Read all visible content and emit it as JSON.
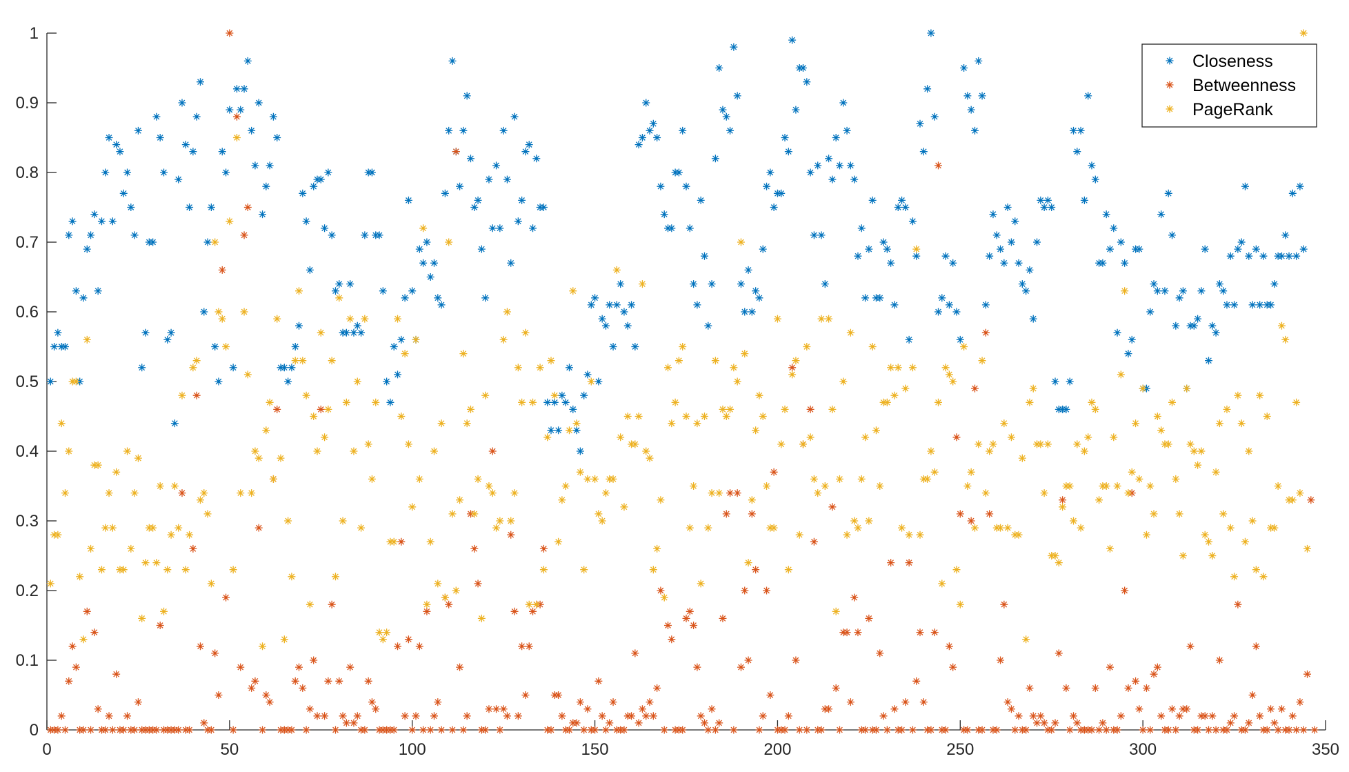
{
  "chart_data": {
    "type": "scatter",
    "marker": "asterisk",
    "xlim": [
      0,
      350
    ],
    "ylim": [
      0,
      1
    ],
    "xticks": [
      0,
      50,
      100,
      150,
      200,
      250,
      300,
      350
    ],
    "yticks": [
      0,
      0.1,
      0.2,
      0.3,
      0.4,
      0.5,
      0.6,
      0.7,
      0.8,
      0.9,
      1
    ],
    "xtick_labels": [
      "0",
      "50",
      "100",
      "150",
      "200",
      "250",
      "300",
      "350"
    ],
    "ytick_labels": [
      "0",
      "0.1",
      "0.2",
      "0.3",
      "0.4",
      "0.5",
      "0.6",
      "0.7",
      "0.8",
      "0.9",
      "1"
    ],
    "grid": false,
    "legend_position": "top-right",
    "series": [
      {
        "name": "Closeness",
        "color": "#0072BD",
        "y": [
          0.5,
          0.55,
          0.57,
          0.55,
          0.55,
          0.71,
          0.73,
          0.63,
          0.5,
          0.62,
          0.69,
          0.71,
          0.74,
          0.63,
          0.73,
          0.8,
          0.85,
          0.73,
          0.84,
          0.83,
          0.77,
          0.8,
          0.75,
          0.71,
          0.86,
          0.52,
          0.57,
          0.7,
          0.7,
          0.88,
          0.85,
          0.8,
          0.56,
          0.57,
          0.44,
          0.79,
          0.9,
          0.84,
          0.75,
          0.83,
          0.88,
          0.93,
          0.6,
          0.7,
          0.75,
          0.55,
          0.5,
          0.83,
          0.8,
          0.89,
          0.52,
          0.92,
          0.89,
          0.92,
          0.96,
          0.86,
          0.81,
          0.9,
          0.74,
          0.78,
          0.81,
          0.88,
          0.85,
          0.52,
          0.52,
          0.5,
          0.52,
          0.55,
          0.58,
          0.77,
          0.73,
          0.66,
          0.78,
          0.79,
          0.79,
          0.72,
          0.8,
          0.71,
          0.63,
          0.64,
          0.57,
          0.57,
          0.64,
          0.57,
          0.58,
          0.57,
          0.71,
          0.8,
          0.8,
          0.71,
          0.71,
          0.63,
          0.5,
          0.47,
          0.55,
          0.51,
          0.56,
          0.62,
          0.76,
          0.63,
          0.56,
          0.69,
          0.67,
          0.7,
          0.65,
          0.67,
          0.62,
          0.61,
          0.77,
          0.86,
          0.96,
          0.83,
          0.78,
          0.86,
          0.91,
          0.82,
          0.75,
          0.76,
          0.69,
          0.62,
          0.79,
          0.72,
          0.81,
          0.72,
          0.86,
          0.79,
          0.67,
          0.88,
          0.73,
          0.76,
          0.83,
          0.84,
          0.72,
          0.82,
          0.75,
          0.75,
          0.47,
          0.43,
          0.47,
          0.43,
          0.48,
          0.47,
          0.52,
          0.46,
          0.43,
          0.4,
          0.48,
          0.51,
          0.61,
          0.62,
          0.5,
          0.59,
          0.58,
          0.61,
          0.55,
          0.61,
          0.64,
          0.6,
          0.58,
          0.61,
          0.55,
          0.84,
          0.85,
          0.9,
          0.86,
          0.87,
          0.85,
          0.78,
          0.74,
          0.72,
          0.72,
          0.8,
          0.8,
          0.86,
          0.78,
          0.72,
          0.64,
          0.61,
          0.76,
          0.68,
          0.58,
          0.64,
          0.82,
          0.95,
          0.89,
          0.88,
          0.86,
          0.98,
          0.91,
          0.64,
          0.6,
          0.66,
          0.6,
          0.63,
          0.62,
          0.69,
          0.78,
          0.8,
          0.75,
          0.77,
          0.77,
          0.85,
          0.83,
          0.99,
          0.89,
          0.95,
          0.95,
          0.93,
          0.8,
          0.71,
          0.81,
          0.71,
          0.64,
          0.82,
          0.79,
          0.85,
          0.81,
          0.9,
          0.86,
          0.81,
          0.79,
          0.68,
          0.72,
          0.62,
          0.69,
          0.76,
          0.62,
          0.62,
          0.7,
          0.69,
          0.67,
          0.61,
          0.75,
          0.76,
          0.75,
          0.56,
          0.73,
          0.68,
          0.87,
          0.83,
          0.92,
          1.0,
          0.88,
          0.6,
          0.62,
          0.68,
          0.61,
          0.67,
          0.6,
          0.56,
          0.95,
          0.91,
          0.89,
          0.86,
          0.96,
          0.91,
          0.61,
          0.68,
          0.74,
          0.71,
          0.69,
          0.67,
          0.75,
          0.7,
          0.73,
          0.67,
          0.64,
          0.63,
          0.66,
          0.59,
          0.7,
          0.76,
          0.75,
          0.76,
          0.75,
          0.5,
          0.46,
          0.46,
          0.46,
          0.5,
          0.86,
          0.83,
          0.86,
          0.76,
          0.91,
          0.81,
          0.79,
          0.67,
          0.67,
          0.74,
          0.69,
          0.72,
          0.57,
          0.7,
          0.67,
          0.54,
          0.56,
          0.69,
          0.69,
          0.49,
          0.49,
          0.6,
          0.64,
          0.63,
          0.74,
          0.63,
          0.77,
          0.71,
          0.58,
          0.62,
          0.63,
          0.49,
          0.58,
          0.58,
          0.59,
          0.63,
          0.69,
          0.53,
          0.58,
          0.57,
          0.64,
          0.63,
          0.61,
          0.68,
          0.61,
          0.69,
          0.7,
          0.78,
          0.68,
          0.61,
          0.69,
          0.61,
          0.68,
          0.61,
          0.61,
          0.64,
          0.68,
          0.68,
          0.71,
          0.68,
          0.77,
          0.68,
          0.78,
          0.69
        ]
      },
      {
        "name": "Betweenness",
        "color": "#D95319",
        "y": [
          0.0,
          0.0,
          0.0,
          0.02,
          0.0,
          0.07,
          0.12,
          0.09,
          0.0,
          0.0,
          0.17,
          0.0,
          0.14,
          0.03,
          0.0,
          0.0,
          0.02,
          0.0,
          0.08,
          0.0,
          0.0,
          0.02,
          0.0,
          0.0,
          0.04,
          0.0,
          0.0,
          0.0,
          0.0,
          0.0,
          0.15,
          0.0,
          0.0,
          0.0,
          0.0,
          0.0,
          0.34,
          0.0,
          0.0,
          0.26,
          0.48,
          0.12,
          0.01,
          0.0,
          0.0,
          0.11,
          0.05,
          0.66,
          0.19,
          1.0,
          0.0,
          0.88,
          0.09,
          0.71,
          0.75,
          0.06,
          0.07,
          0.29,
          0.0,
          0.05,
          0.04,
          0.36,
          0.46,
          0.0,
          0.0,
          0.0,
          0.0,
          0.07,
          0.09,
          0.06,
          0.0,
          0.03,
          0.1,
          0.02,
          0.46,
          0.02,
          0.07,
          0.18,
          0.0,
          0.07,
          0.02,
          0.01,
          0.09,
          0.01,
          0.02,
          0.0,
          0.0,
          0.07,
          0.04,
          0.03,
          0.0,
          0.0,
          0.0,
          0.0,
          0.0,
          0.12,
          0.27,
          0.02,
          0.13,
          0.0,
          0.02,
          0.12,
          0.0,
          0.17,
          0.0,
          0.02,
          0.04,
          0.0,
          0.19,
          0.18,
          0.0,
          0.83,
          0.09,
          0.0,
          0.02,
          0.31,
          0.26,
          0.21,
          0.0,
          0.0,
          0.03,
          0.4,
          0.03,
          0.0,
          0.03,
          0.02,
          0.28,
          0.17,
          0.02,
          0.12,
          0.05,
          0.12,
          0.17,
          0.18,
          0.18,
          0.26,
          0.0,
          0.0,
          0.05,
          0.05,
          0.02,
          0.0,
          0.0,
          0.01,
          0.01,
          0.04,
          0.0,
          0.03,
          0.0,
          0.0,
          0.07,
          0.02,
          0.0,
          0.01,
          0.04,
          0.0,
          0.0,
          0.0,
          0.02,
          0.02,
          0.11,
          0.01,
          0.03,
          0.02,
          0.04,
          0.02,
          0.06,
          0.2,
          0.0,
          0.15,
          0.13,
          0.0,
          0.0,
          0.0,
          0.16,
          0.17,
          0.15,
          0.09,
          0.02,
          0.01,
          0.0,
          0.03,
          0.0,
          0.01,
          0.16,
          0.31,
          0.34,
          0.0,
          0.34,
          0.09,
          0.2,
          0.1,
          0.31,
          0.23,
          0.0,
          0.02,
          0.2,
          0.05,
          0.37,
          0.0,
          0.0,
          0.0,
          0.02,
          0.52,
          0.1,
          0.0,
          0.41,
          0.0,
          0.46,
          0.27,
          0.0,
          0.0,
          0.03,
          0.03,
          0.32,
          0.06,
          0.0,
          0.14,
          0.14,
          0.04,
          0.19,
          0.14,
          0.0,
          0.0,
          0.16,
          0.0,
          0.0,
          0.11,
          0.02,
          0.0,
          0.24,
          0.03,
          0.0,
          0.0,
          0.04,
          0.24,
          0.0,
          0.07,
          0.14,
          0.04,
          0.0,
          0.0,
          0.14,
          0.81,
          0.0,
          0.0,
          0.12,
          0.09,
          0.42,
          0.31,
          0.0,
          0.0,
          0.3,
          0.49,
          0.0,
          0.0,
          0.57,
          0.31,
          0.0,
          0.0,
          0.1,
          0.18,
          0.04,
          0.03,
          0.0,
          0.02,
          0.0,
          0.0,
          0.06,
          0.02,
          0.01,
          0.02,
          0.01,
          0.0,
          0.0,
          0.01,
          0.11,
          0.33,
          0.06,
          0.0,
          0.02,
          0.01,
          0.0,
          0.0,
          0.0,
          0.0,
          0.06,
          0.0,
          0.01,
          0.0,
          0.09,
          0.0,
          0.0,
          0.02,
          0.2,
          0.06,
          0.34,
          0.07,
          0.03,
          0.0,
          0.06,
          0.0,
          0.08,
          0.09,
          0.02,
          0.0,
          0.0,
          0.03,
          0.0,
          0.02,
          0.03,
          0.03,
          0.12,
          0.0,
          0.0,
          0.02,
          0.02,
          0.0,
          0.02,
          0.0,
          0.1,
          0.0,
          0.0,
          0.01,
          0.02,
          0.18,
          0.0,
          0.0,
          0.01,
          0.05,
          0.12,
          0.02,
          0.0,
          0.0,
          0.03,
          0.01,
          0.0,
          0.03,
          0.0,
          0.0,
          0.02,
          0.0,
          0.04,
          0.0,
          0.08,
          0.33,
          0.0
        ]
      },
      {
        "name": "PageRank",
        "color": "#EDB120",
        "y": [
          0.21,
          0.28,
          0.28,
          0.44,
          0.34,
          0.4,
          0.5,
          0.5,
          0.22,
          0.13,
          0.56,
          0.26,
          0.38,
          0.38,
          0.23,
          0.29,
          0.34,
          0.29,
          0.37,
          0.23,
          0.23,
          0.4,
          0.26,
          0.34,
          0.39,
          0.16,
          0.24,
          0.29,
          0.29,
          0.24,
          0.35,
          0.17,
          0.23,
          0.28,
          0.35,
          0.29,
          0.48,
          0.23,
          0.28,
          0.52,
          0.53,
          0.33,
          0.34,
          0.31,
          0.21,
          0.7,
          0.6,
          0.59,
          0.55,
          0.73,
          0.23,
          0.85,
          0.34,
          0.6,
          0.51,
          0.34,
          0.4,
          0.39,
          0.12,
          0.43,
          0.47,
          0.36,
          0.59,
          0.39,
          0.13,
          0.3,
          0.22,
          0.53,
          0.63,
          0.53,
          0.48,
          0.18,
          0.45,
          0.4,
          0.57,
          0.42,
          0.46,
          0.53,
          0.22,
          0.62,
          0.3,
          0.47,
          0.59,
          0.4,
          0.5,
          0.29,
          0.59,
          0.41,
          0.36,
          0.47,
          0.14,
          0.13,
          0.14,
          0.27,
          0.27,
          0.59,
          0.45,
          0.54,
          0.41,
          0.32,
          0.56,
          0.36,
          0.72,
          0.18,
          0.27,
          0.4,
          0.21,
          0.44,
          0.19,
          0.7,
          0.31,
          0.2,
          0.33,
          0.54,
          0.44,
          0.46,
          0.31,
          0.36,
          0.16,
          0.48,
          0.35,
          0.34,
          0.29,
          0.3,
          0.56,
          0.6,
          0.3,
          0.34,
          0.52,
          0.47,
          0.57,
          0.18,
          0.47,
          0.18,
          0.52,
          0.23,
          0.42,
          0.53,
          0.48,
          0.27,
          0.33,
          0.35,
          0.43,
          0.63,
          0.44,
          0.37,
          0.23,
          0.36,
          0.5,
          0.36,
          0.31,
          0.3,
          0.34,
          0.36,
          0.36,
          0.66,
          0.42,
          0.32,
          0.45,
          0.41,
          0.41,
          0.45,
          0.64,
          0.4,
          0.39,
          0.23,
          0.26,
          0.33,
          0.19,
          0.52,
          0.44,
          0.47,
          0.53,
          0.55,
          0.45,
          0.29,
          0.35,
          0.44,
          0.21,
          0.45,
          0.29,
          0.34,
          0.53,
          0.34,
          0.46,
          0.45,
          0.46,
          0.52,
          0.5,
          0.7,
          0.54,
          0.24,
          0.33,
          0.43,
          0.48,
          0.45,
          0.35,
          0.29,
          0.29,
          0.59,
          0.41,
          0.46,
          0.23,
          0.51,
          0.53,
          0.28,
          0.41,
          0.55,
          0.42,
          0.36,
          0.34,
          0.59,
          0.35,
          0.59,
          0.46,
          0.17,
          0.36,
          0.5,
          0.28,
          0.57,
          0.3,
          0.29,
          0.36,
          0.42,
          0.3,
          0.55,
          0.43,
          0.35,
          0.47,
          0.47,
          0.52,
          0.48,
          0.52,
          0.29,
          0.49,
          0.28,
          0.52,
          0.69,
          0.28,
          0.36,
          0.36,
          0.4,
          0.37,
          0.47,
          0.21,
          0.52,
          0.51,
          0.5,
          0.23,
          0.18,
          0.55,
          0.35,
          0.37,
          0.29,
          0.41,
          0.53,
          0.34,
          0.4,
          0.41,
          0.29,
          0.29,
          0.44,
          0.29,
          0.42,
          0.28,
          0.28,
          0.39,
          0.13,
          0.47,
          0.49,
          0.41,
          0.41,
          0.34,
          0.41,
          0.25,
          0.25,
          0.24,
          0.32,
          0.35,
          0.35,
          0.3,
          0.41,
          0.29,
          0.4,
          0.42,
          0.47,
          0.46,
          0.33,
          0.35,
          0.35,
          0.26,
          0.42,
          0.35,
          0.51,
          0.63,
          0.34,
          0.37,
          0.44,
          0.36,
          0.49,
          0.28,
          0.35,
          0.31,
          0.45,
          0.43,
          0.41,
          0.41,
          0.47,
          0.36,
          0.31,
          0.25,
          0.49,
          0.41,
          0.4,
          0.38,
          0.4,
          0.28,
          0.27,
          0.25,
          0.37,
          0.44,
          0.31,
          0.46,
          0.29,
          0.22,
          0.48,
          0.44,
          0.27,
          0.4,
          0.3,
          0.23,
          0.48,
          0.22,
          0.45,
          0.29,
          0.29,
          0.35,
          0.58,
          0.56,
          0.33,
          0.33,
          0.47,
          0.34,
          1.0,
          0.26
        ]
      }
    ]
  }
}
